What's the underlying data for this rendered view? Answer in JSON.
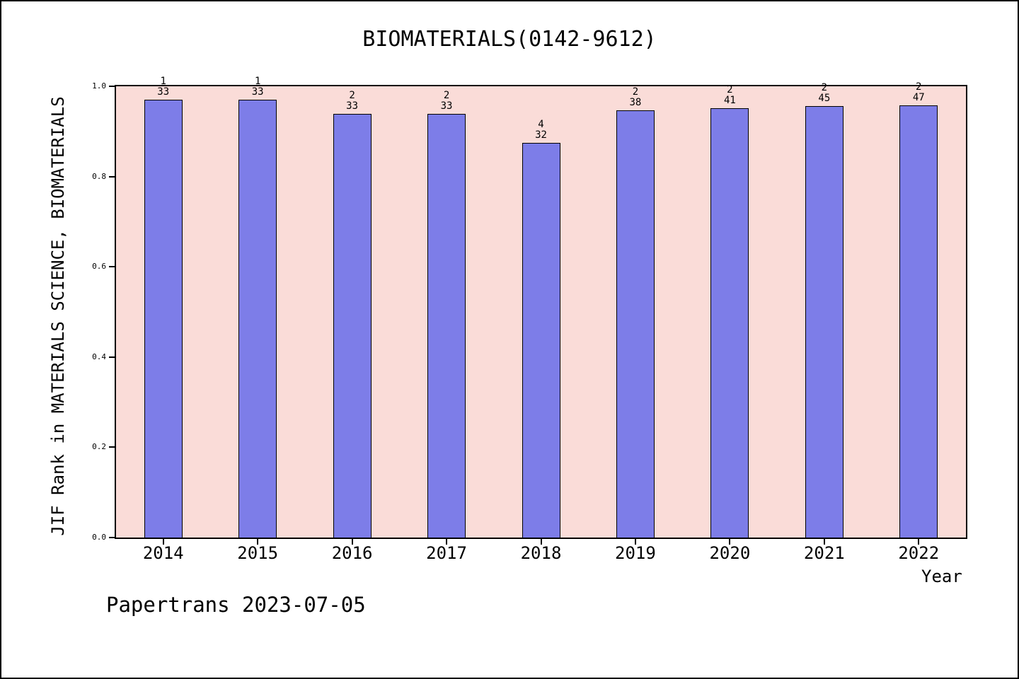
{
  "title": "BIOMATERIALS(0142-9612)",
  "footer": "Papertrans 2023-07-05",
  "chart_data": {
    "type": "bar",
    "title": "BIOMATERIALS(0142-9612)",
    "xlabel": "Year",
    "ylabel": "JIF Rank in MATERIALS SCIENCE, BIOMATERIALS",
    "ylim": [
      0.0,
      1.0
    ],
    "yticks": [
      0.0,
      0.2,
      0.4,
      0.6,
      0.8,
      1.0
    ],
    "grid": false,
    "legend": false,
    "plot_background": "#fadcd8",
    "bar_color": "#7d7de8",
    "bar_edge_color": "#000000",
    "categories": [
      "2014",
      "2015",
      "2016",
      "2017",
      "2018",
      "2019",
      "2020",
      "2021",
      "2022"
    ],
    "bars": [
      {
        "year": "2014",
        "rank": "1",
        "total": "33",
        "value": 0.9697
      },
      {
        "year": "2015",
        "rank": "1",
        "total": "33",
        "value": 0.9697
      },
      {
        "year": "2016",
        "rank": "2",
        "total": "33",
        "value": 0.9394
      },
      {
        "year": "2017",
        "rank": "2",
        "total": "33",
        "value": 0.9394
      },
      {
        "year": "2018",
        "rank": "4",
        "total": "32",
        "value": 0.875
      },
      {
        "year": "2019",
        "rank": "2",
        "total": "38",
        "value": 0.9474
      },
      {
        "year": "2020",
        "rank": "2",
        "total": "41",
        "value": 0.9512
      },
      {
        "year": "2021",
        "rank": "2",
        "total": "45",
        "value": 0.9556
      },
      {
        "year": "2022",
        "rank": "2",
        "total": "47",
        "value": 0.9574
      }
    ]
  }
}
